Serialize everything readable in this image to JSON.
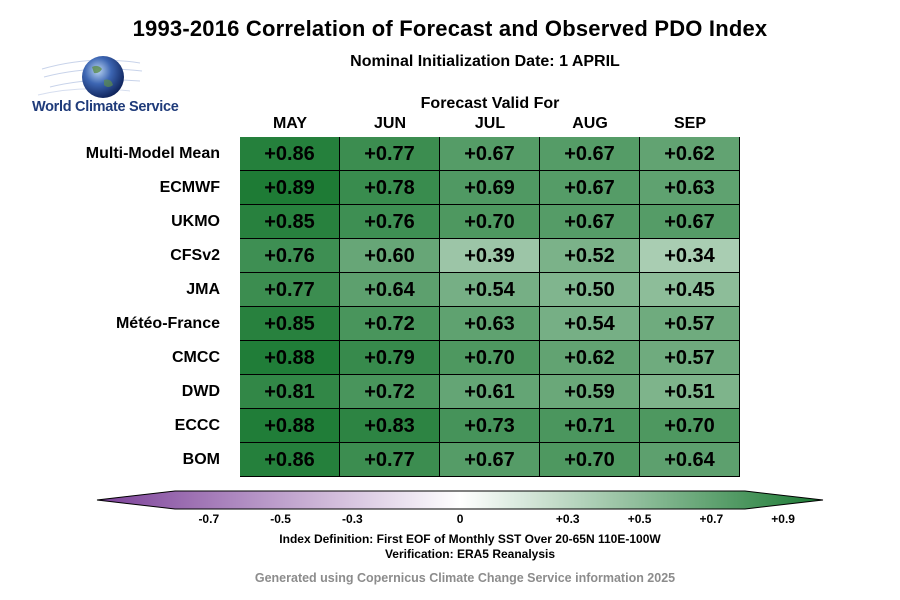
{
  "title": "1993-2016 Correlation of Forecast and Observed PDO Index",
  "subtitle": "Nominal Initialization Date: 1 APRIL",
  "logo": {
    "text": "World Climate Service",
    "icon": "globe-icon"
  },
  "chart_data": {
    "type": "heatmap",
    "title": "1993-2016 Correlation of Forecast and Observed PDO Index",
    "subtitle": "Nominal Initialization Date: 1 APRIL",
    "column_title": "Forecast Valid For",
    "columns": [
      "MAY",
      "JUN",
      "JUL",
      "AUG",
      "SEP"
    ],
    "rows": [
      "Multi-Model Mean",
      "ECMWF",
      "UKMO",
      "CFSv2",
      "JMA",
      "Météo-France",
      "CMCC",
      "DWD",
      "ECCC",
      "BOM"
    ],
    "values": [
      [
        0.86,
        0.77,
        0.67,
        0.67,
        0.62
      ],
      [
        0.89,
        0.78,
        0.69,
        0.67,
        0.63
      ],
      [
        0.85,
        0.76,
        0.7,
        0.67,
        0.67
      ],
      [
        0.76,
        0.6,
        0.39,
        0.52,
        0.34
      ],
      [
        0.77,
        0.64,
        0.54,
        0.5,
        0.45
      ],
      [
        0.85,
        0.72,
        0.63,
        0.54,
        0.57
      ],
      [
        0.88,
        0.79,
        0.7,
        0.62,
        0.57
      ],
      [
        0.81,
        0.72,
        0.61,
        0.59,
        0.51
      ],
      [
        0.88,
        0.83,
        0.73,
        0.71,
        0.7
      ],
      [
        0.86,
        0.77,
        0.67,
        0.7,
        0.64
      ]
    ],
    "labels": [
      [
        "+0.86",
        "+0.77",
        "+0.67",
        "+0.67",
        "+0.62"
      ],
      [
        "+0.89",
        "+0.78",
        "+0.69",
        "+0.67",
        "+0.63"
      ],
      [
        "+0.85",
        "+0.76",
        "+0.70",
        "+0.67",
        "+0.67"
      ],
      [
        "+0.76",
        "+0.60",
        "+0.39",
        "+0.52",
        "+0.34"
      ],
      [
        "+0.77",
        "+0.64",
        "+0.54",
        "+0.50",
        "+0.45"
      ],
      [
        "+0.85",
        "+0.72",
        "+0.63",
        "+0.54",
        "+0.57"
      ],
      [
        "+0.88",
        "+0.79",
        "+0.70",
        "+0.62",
        "+0.57"
      ],
      [
        "+0.81",
        "+0.72",
        "+0.61",
        "+0.59",
        "+0.51"
      ],
      [
        "+0.88",
        "+0.83",
        "+0.73",
        "+0.71",
        "+0.70"
      ],
      [
        "+0.86",
        "+0.77",
        "+0.67",
        "+0.70",
        "+0.64"
      ]
    ],
    "colorbar": {
      "range": [
        -0.9,
        0.9
      ],
      "ticks": [
        {
          "value": -0.7,
          "label": "-0.7"
        },
        {
          "value": -0.5,
          "label": "-0.5"
        },
        {
          "value": -0.3,
          "label": "-0.3"
        },
        {
          "value": 0,
          "label": "0"
        },
        {
          "value": 0.3,
          "label": "+0.3"
        },
        {
          "value": 0.5,
          "label": "+0.5"
        },
        {
          "value": 0.7,
          "label": "+0.7"
        },
        {
          "value": 0.9,
          "label": "+0.9"
        }
      ],
      "negative_color": "#7b3f98",
      "zero_color": "#ffffff",
      "positive_color": "#1b7a33"
    }
  },
  "footnotes": {
    "definition": "Index Definition: First EOF of Monthly SST Over 20-65N 110E-100W",
    "verification": "Verification: ERA5 Reanalysis"
  },
  "credit": "Generated using Copernicus Climate Change Service information 2025"
}
